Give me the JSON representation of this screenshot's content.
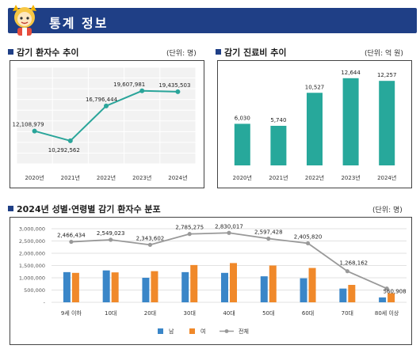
{
  "header": {
    "title": "통계 정보"
  },
  "chart_data": [
    {
      "type": "line",
      "title": "감기 환자수 추이",
      "unit": "(단위: 명)",
      "categories": [
        "2020년",
        "2021년",
        "2022년",
        "2023년",
        "2024년"
      ],
      "values": [
        12108979,
        10292562,
        16796444,
        19607981,
        19435503
      ],
      "labels": [
        "12,108,979",
        "10,292,562",
        "16,796,444",
        "19,607,981",
        "19,435,503"
      ],
      "ylim": [
        6000000,
        24000000
      ],
      "grid": true,
      "colors": {
        "line": "#2aa59a"
      }
    },
    {
      "type": "bar",
      "title": "감기 진료비 추이",
      "unit": "(단위: 억 원)",
      "categories": [
        "2020년",
        "2021년",
        "2022년",
        "2023년",
        "2024년"
      ],
      "values": [
        6030,
        5740,
        10527,
        12644,
        12257
      ],
      "labels": [
        "6,030",
        "5,740",
        "10,527",
        "12,644",
        "12,257"
      ],
      "ylim": [
        0,
        14000
      ],
      "colors": {
        "bar": "#27a89b"
      }
    },
    {
      "type": "bar",
      "title": "2024년 성별·연령별 감기 환자수 분포",
      "unit": "(단위: 명)",
      "categories": [
        "9세 이하",
        "10대",
        "20대",
        "30대",
        "40대",
        "50대",
        "60대",
        "70대",
        "80세 이상"
      ],
      "yticks": [
        "3,000,000",
        "2,500,000",
        "2,000,000",
        "1,500,000",
        "1,000,000",
        "500,000",
        "-"
      ],
      "ylim": [
        0,
        3000000
      ],
      "grid": true,
      "legend": "bottom",
      "series": [
        {
          "name": "남",
          "type": "bar",
          "color": "#3a86c8",
          "values": [
            1230000,
            1300000,
            1000000,
            1230000,
            1200000,
            1060000,
            980000,
            560000,
            200000
          ]
        },
        {
          "name": "여",
          "type": "bar",
          "color": "#f0892a",
          "values": [
            1200000,
            1220000,
            1270000,
            1520000,
            1600000,
            1500000,
            1400000,
            710000,
            370000
          ]
        },
        {
          "name": "전체",
          "type": "line",
          "color": "#999999",
          "values": [
            2466434,
            2549023,
            2343602,
            2785275,
            2830017,
            2597428,
            2405820,
            1268162,
            560908
          ],
          "labels": [
            "2,466,434",
            "2,549,023",
            "2,343,602",
            "2,785,275",
            "2,830,017",
            "2,597,428",
            "2,405,820",
            "1,268,162",
            "560,908"
          ]
        }
      ]
    }
  ]
}
